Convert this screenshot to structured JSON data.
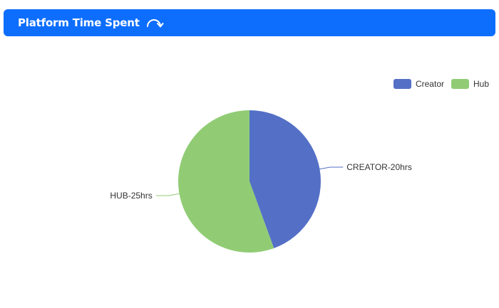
{
  "header": {
    "title": "Platform Time Spent",
    "icon": "refresh-icon"
  },
  "chart_data": {
    "type": "pie",
    "series": [
      {
        "name": "Creator",
        "value": 20,
        "label": "CREATOR-20hrs",
        "color": "#5470c6"
      },
      {
        "name": "Hub",
        "value": 25,
        "label": "HUB-25hrs",
        "color": "#91cc75"
      }
    ],
    "legend_position": "top-right"
  }
}
